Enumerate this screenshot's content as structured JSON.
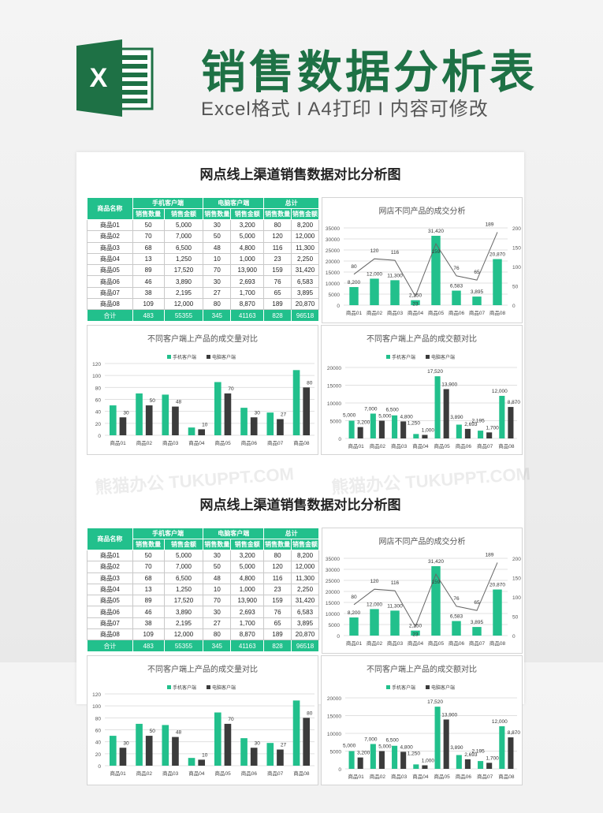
{
  "header": {
    "title": "销售数据分析表",
    "subtitle": "Excel格式 I A4打印 I 内容可修改",
    "logo_letter": "X"
  },
  "watermark": "熊猫办公 TUKUPPT.COM",
  "sheet": {
    "title": "网点线上渠道销售数据对比分析图"
  },
  "colors": {
    "brand": "#1e7145",
    "accent": "#22c08c",
    "dark_series": "#3b3b3b"
  },
  "table": {
    "name_header": "商品名称",
    "groups": [
      "手机客户端",
      "电脑客户端",
      "总计"
    ],
    "sub_headers": [
      "销售数量",
      "销售金额",
      "销售数量",
      "销售金额",
      "销售数量",
      "销售金额"
    ],
    "rows": [
      [
        "商品01",
        "50",
        "5,000",
        "30",
        "3,200",
        "80",
        "8,200"
      ],
      [
        "商品02",
        "70",
        "7,000",
        "50",
        "5,000",
        "120",
        "12,000"
      ],
      [
        "商品03",
        "68",
        "6,500",
        "48",
        "4,800",
        "116",
        "11,300"
      ],
      [
        "商品04",
        "13",
        "1,250",
        "10",
        "1,000",
        "23",
        "2,250"
      ],
      [
        "商品05",
        "89",
        "17,520",
        "70",
        "13,900",
        "159",
        "31,420"
      ],
      [
        "商品06",
        "46",
        "3,890",
        "30",
        "2,693",
        "76",
        "6,583"
      ],
      [
        "商品07",
        "38",
        "2,195",
        "27",
        "1,700",
        "65",
        "3,895"
      ],
      [
        "商品08",
        "109",
        "12,000",
        "80",
        "8,870",
        "189",
        "20,870"
      ]
    ],
    "total": [
      "合计",
      "483",
      "55355",
      "345",
      "41163",
      "828",
      "96518"
    ]
  },
  "chart_data": [
    {
      "type": "bar+line",
      "title": "网店不同产品的成交分析",
      "categories": [
        "商品01",
        "商品02",
        "商品03",
        "商品04",
        "商品05",
        "商品06",
        "商品07",
        "商品08"
      ],
      "series": [
        {
          "kind": "bar",
          "axis": "left",
          "values": [
            8200,
            12000,
            11300,
            2250,
            31420,
            6583,
            3895,
            20870
          ]
        },
        {
          "kind": "line",
          "axis": "right",
          "values": [
            80,
            120,
            116,
            23,
            159,
            76,
            65,
            189
          ]
        }
      ],
      "ylim": [
        0,
        35000
      ],
      "yticks": [
        0,
        5000,
        10000,
        15000,
        20000,
        25000,
        30000,
        35000
      ],
      "y2lim": [
        0,
        200
      ],
      "y2ticks": [
        0,
        50,
        100,
        150,
        200
      ],
      "grid": true,
      "legend": "none"
    },
    {
      "type": "bar",
      "title": "不同客户端上产品的成交量对比",
      "categories": [
        "商品01",
        "商品02",
        "商品03",
        "商品04",
        "商品05",
        "商品06",
        "商品07",
        "商品08"
      ],
      "series": [
        {
          "name": "手机客户端",
          "values": [
            50,
            70,
            68,
            13,
            89,
            46,
            38,
            109
          ],
          "labels": false
        },
        {
          "name": "电脑客户端",
          "values": [
            30,
            50,
            48,
            10,
            70,
            30,
            27,
            80
          ],
          "labels": true
        }
      ],
      "ylim": [
        0,
        120
      ],
      "yticks": [
        0,
        20,
        40,
        60,
        80,
        100,
        120
      ],
      "grid": true,
      "legend": "top"
    },
    {
      "type": "bar",
      "title": "不同客户端上产品的成交额对比",
      "categories": [
        "商品01",
        "商品02",
        "商品03",
        "商品04",
        "商品05",
        "商品06",
        "商品07",
        "商品08"
      ],
      "series": [
        {
          "name": "手机客户端",
          "values": [
            5000,
            7000,
            6500,
            1250,
            17520,
            3890,
            2195,
            12000
          ],
          "labels": true
        },
        {
          "name": "电脑客户端",
          "values": [
            3200,
            5000,
            4800,
            1000,
            13900,
            2693,
            1700,
            8870
          ],
          "labels": true
        }
      ],
      "ylim": [
        0,
        20000
      ],
      "yticks": [
        0,
        5000,
        10000,
        15000,
        20000
      ],
      "grid": true,
      "legend": "top"
    }
  ]
}
